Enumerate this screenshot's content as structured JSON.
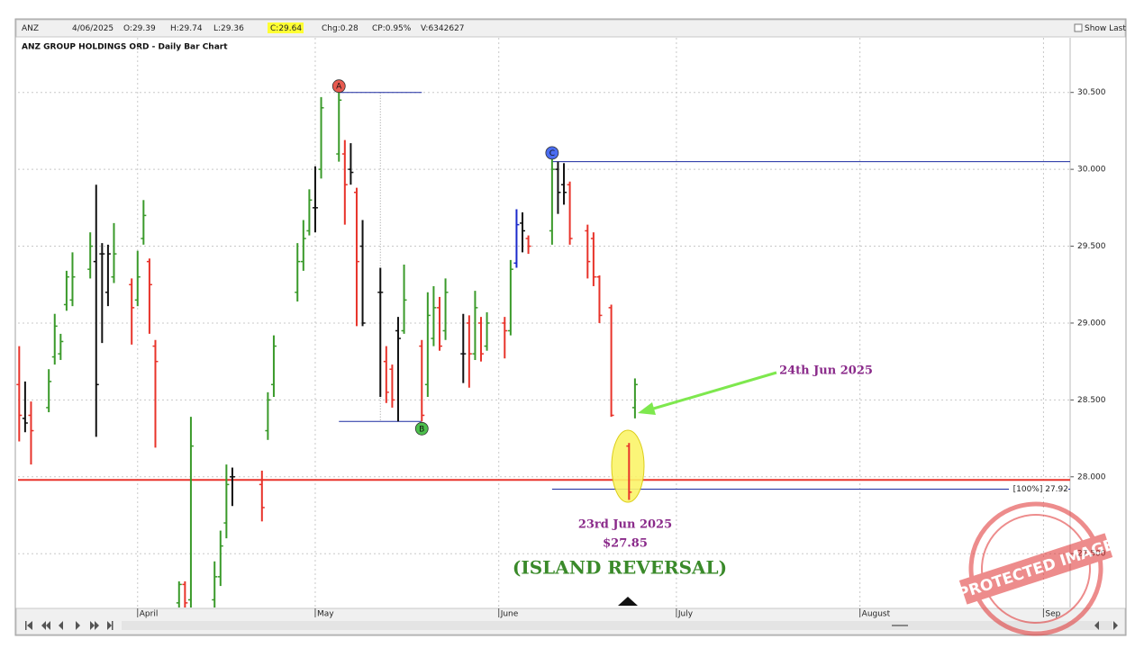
{
  "header": {
    "symbol": "ANZ",
    "date": "4/06/2025",
    "fields": [
      "O:29.39",
      "H:29.74",
      "L:29.36",
      "C:29.64",
      "Chg:0.28",
      "CP:0.95%",
      "V:6342627"
    ],
    "show_last": "Show Last",
    "watermark": "PROTECTED IMAGE"
  },
  "chart_data": {
    "type": "ohlc",
    "title": "ANZ GROUP HOLDINGS ORD - Daily Bar Chart",
    "x": [
      -20,
      -19,
      -18,
      -15,
      -14,
      -13,
      -12,
      -11,
      -8,
      -7,
      -6,
      -5,
      -4,
      -1,
      0,
      1,
      2,
      3,
      7,
      8,
      9,
      13,
      14,
      15,
      16,
      21,
      22,
      23,
      27,
      28,
      29,
      30,
      31,
      34,
      35,
      36,
      37,
      38,
      41,
      42,
      43,
      44,
      45,
      48,
      49,
      50,
      51,
      52,
      55,
      56,
      57,
      58,
      59,
      62,
      63,
      64,
      65,
      66,
      70,
      71,
      72,
      73,
      76,
      77,
      78,
      80,
      83,
      84
    ],
    "open": [
      28.6,
      28.38,
      28.4,
      28.45,
      28.78,
      28.8,
      29.12,
      29.15,
      29.35,
      29.4,
      29.45,
      29.2,
      29.3,
      29.25,
      29.15,
      29.55,
      29.4,
      28.85,
      27.18,
      27.3,
      27.2,
      27.2,
      27.35,
      27.7,
      28.0,
      27.95,
      28.3,
      28.6,
      29.2,
      29.4,
      29.6,
      29.75,
      30.0,
      30.1,
      30.1,
      30.0,
      29.85,
      29.5,
      29.2,
      28.75,
      28.7,
      28.95,
      28.95,
      28.85,
      28.6,
      28.9,
      29.1,
      28.95,
      28.8,
      29.0,
      28.8,
      29.0,
      28.85,
      29.0,
      28.95,
      29.39,
      29.65,
      29.55,
      29.6,
      30.0,
      29.9,
      29.9,
      29.6,
      29.55,
      29.3,
      29.1,
      28.2,
      28.45
    ],
    "high": [
      28.85,
      28.62,
      28.49,
      28.7,
      29.06,
      28.93,
      29.34,
      29.46,
      29.59,
      29.9,
      29.52,
      29.51,
      29.65,
      29.29,
      29.47,
      29.8,
      29.42,
      28.89,
      27.32,
      27.32,
      28.39,
      27.45,
      27.65,
      28.08,
      28.06,
      28.04,
      28.55,
      28.92,
      29.52,
      29.67,
      29.87,
      30.02,
      30.47,
      30.5,
      30.19,
      30.17,
      29.88,
      29.67,
      29.36,
      28.85,
      28.73,
      29.04,
      29.38,
      28.89,
      29.2,
      29.24,
      29.17,
      29.29,
      29.06,
      29.05,
      29.21,
      29.04,
      29.07,
      29.04,
      29.41,
      29.74,
      29.72,
      29.57,
      30.08,
      30.05,
      30.04,
      29.92,
      29.64,
      29.59,
      29.31,
      29.12,
      28.22,
      28.64
    ],
    "low": [
      28.23,
      28.29,
      28.08,
      28.42,
      28.73,
      28.76,
      29.08,
      29.11,
      29.29,
      28.26,
      28.87,
      29.11,
      29.26,
      28.86,
      29.11,
      29.51,
      28.93,
      28.19,
      27.15,
      27.15,
      27.15,
      27.15,
      27.29,
      27.6,
      27.81,
      27.71,
      28.24,
      28.52,
      29.14,
      29.34,
      29.57,
      29.59,
      29.94,
      30.05,
      29.64,
      29.9,
      28.98,
      28.98,
      28.52,
      28.48,
      28.45,
      28.36,
      28.93,
      28.36,
      28.52,
      28.85,
      28.82,
      28.89,
      28.61,
      28.58,
      28.76,
      28.75,
      28.82,
      28.77,
      28.92,
      29.36,
      29.46,
      29.45,
      29.51,
      29.71,
      29.77,
      29.51,
      29.29,
      29.24,
      29.0,
      28.39,
      27.85,
      28.38
    ],
    "close": [
      28.4,
      28.35,
      28.3,
      28.62,
      28.98,
      28.88,
      29.3,
      29.3,
      29.5,
      28.6,
      29.45,
      29.45,
      29.45,
      29.1,
      29.3,
      29.7,
      29.25,
      28.75,
      27.3,
      27.18,
      28.2,
      27.35,
      27.55,
      27.95,
      28.0,
      27.8,
      28.5,
      28.85,
      29.4,
      29.55,
      29.8,
      29.75,
      30.4,
      30.45,
      29.9,
      29.98,
      29.4,
      29.0,
      29.2,
      28.55,
      28.5,
      28.9,
      29.15,
      28.4,
      29.05,
      29.1,
      28.85,
      29.2,
      28.8,
      28.8,
      29.1,
      28.8,
      29.0,
      28.95,
      29.35,
      29.64,
      29.6,
      29.5,
      30.0,
      29.85,
      29.85,
      29.55,
      29.4,
      29.3,
      29.05,
      28.4,
      27.9,
      28.6
    ],
    "bar_colors": [
      "#e8332a",
      "#111111",
      "#e8332a",
      "#3a9a2a",
      "#3a9a2a",
      "#3a9a2a",
      "#3a9a2a",
      "#3a9a2a",
      "#3a9a2a",
      "#111111",
      "#111111",
      "#111111",
      "#3a9a2a",
      "#e8332a",
      "#3a9a2a",
      "#3a9a2a",
      "#e8332a",
      "#e8332a",
      "#3a9a2a",
      "#e8332a",
      "#3a9a2a",
      "#3a9a2a",
      "#3a9a2a",
      "#3a9a2a",
      "#111111",
      "#e8332a",
      "#3a9a2a",
      "#3a9a2a",
      "#3a9a2a",
      "#3a9a2a",
      "#3a9a2a",
      "#111111",
      "#3a9a2a",
      "#3a9a2a",
      "#e8332a",
      "#111111",
      "#e8332a",
      "#111111",
      "#111111",
      "#e8332a",
      "#e8332a",
      "#111111",
      "#3a9a2a",
      "#e8332a",
      "#3a9a2a",
      "#3a9a2a",
      "#e8332a",
      "#3a9a2a",
      "#111111",
      "#e8332a",
      "#3a9a2a",
      "#e8332a",
      "#3a9a2a",
      "#e8332a",
      "#3a9a2a",
      "#1a2acc",
      "#111111",
      "#e8332a",
      "#3a9a2a",
      "#111111",
      "#111111",
      "#e8332a",
      "#e8332a",
      "#e8332a",
      "#e8332a",
      "#e8332a",
      "#e8332a",
      "#3a9a2a"
    ],
    "xlim": [
      -20.2,
      157.5
    ],
    "xticks": [
      {
        "value": 0,
        "label": "April"
      },
      {
        "value": 30,
        "label": "May"
      },
      {
        "value": 61,
        "label": "June"
      },
      {
        "value": 91,
        "label": "July"
      },
      {
        "value": 122,
        "label": "August"
      },
      {
        "value": 153,
        "label": "Sep"
      }
    ],
    "ylim": [
      27.15,
      30.75
    ],
    "yticks": [
      {
        "value": 27.5,
        "label": "27.500"
      },
      {
        "value": 28,
        "label": "28.000"
      },
      {
        "value": 28.5,
        "label": "28.500"
      },
      {
        "value": 29,
        "label": "29.000"
      },
      {
        "value": 29.5,
        "label": "29.500"
      },
      {
        "value": 30,
        "label": "30.000"
      },
      {
        "value": 30.5,
        "label": "30.500"
      }
    ],
    "grid": true,
    "lines": [
      {
        "value": 30.5,
        "start": 34,
        "end": 48,
        "color": "#1a2aa0"
      },
      {
        "value": 28.36,
        "start": 34,
        "end": 48,
        "color": "#1a2aa0"
      },
      {
        "value": 30.05,
        "start": 70,
        "color": "#1a2aa0"
      },
      {
        "value": 27.98,
        "color": "#e8332a"
      },
      {
        "value": 27.92,
        "start": 70,
        "color": "#1a2aa0",
        "label": "[100%] 27.92"
      }
    ],
    "guides": [
      {
        "x": 41,
        "from": 30.5,
        "to": 28.36
      }
    ],
    "point_labels": [
      {
        "text": "A",
        "x": 34,
        "y": 30.5,
        "color": "#e85a50",
        "placement": "above"
      },
      {
        "text": "B",
        "x": 48,
        "y": 28.36,
        "color": "#4cbf4c",
        "placement": "below"
      },
      {
        "text": "C",
        "x": 70,
        "y": 30.06,
        "color": "#4a6cf0",
        "placement": "on"
      }
    ],
    "annotations": [
      {
        "text": "24th Jun 2025"
      },
      {
        "text": "23rd Jun 2025"
      },
      {
        "text": "$27.85"
      },
      {
        "text": "(ISLAND REVERSAL)"
      }
    ]
  }
}
